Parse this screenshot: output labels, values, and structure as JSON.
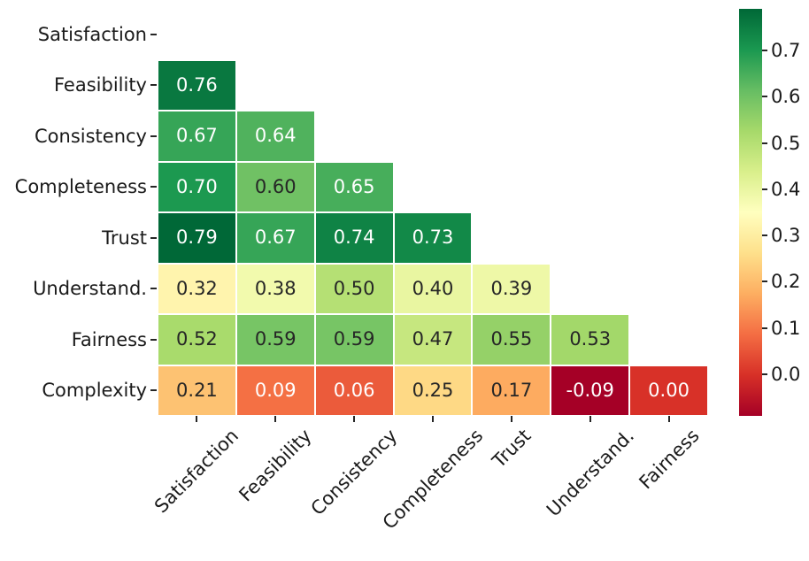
{
  "figure": {
    "background": "#ffffff",
    "text_color": "#1a1a1a"
  },
  "chart_data": {
    "type": "heatmap",
    "subtype": "correlation-matrix-lower-triangle",
    "title": "",
    "rows": [
      "Satisfaction",
      "Feasibility",
      "Consistency",
      "Completeness",
      "Trust",
      "Understand.",
      "Fairness",
      "Complexity"
    ],
    "cols": [
      "Satisfaction",
      "Feasibility",
      "Consistency",
      "Completeness",
      "Trust",
      "Understand.",
      "Fairness"
    ],
    "matrix": [
      [
        null,
        null,
        null,
        null,
        null,
        null,
        null
      ],
      [
        0.76,
        null,
        null,
        null,
        null,
        null,
        null
      ],
      [
        0.67,
        0.64,
        null,
        null,
        null,
        null,
        null
      ],
      [
        0.7,
        0.6,
        0.65,
        null,
        null,
        null,
        null
      ],
      [
        0.79,
        0.67,
        0.74,
        0.73,
        null,
        null,
        null
      ],
      [
        0.32,
        0.38,
        0.5,
        0.4,
        0.39,
        null,
        null
      ],
      [
        0.52,
        0.59,
        0.59,
        0.47,
        0.55,
        0.53,
        null
      ],
      [
        0.21,
        0.09,
        0.06,
        0.25,
        0.17,
        -0.09,
        0.0
      ]
    ],
    "mask": "upper-triangle-including-diagonal",
    "value_decimals": 2,
    "vmin": -0.09,
    "vmax": 0.79,
    "xlabel": "",
    "ylabel": "",
    "grid": false,
    "cell_gap_color": "#ffffff",
    "annotation_dark_text": "#262626",
    "annotation_light_text": "#ffffff",
    "colormap": {
      "name": "RdYlGn",
      "stops": [
        [
          0.0,
          "#a50026"
        ],
        [
          0.1,
          "#d73027"
        ],
        [
          0.2,
          "#f46d43"
        ],
        [
          0.3,
          "#fdae61"
        ],
        [
          0.4,
          "#fee08b"
        ],
        [
          0.5,
          "#ffffbf"
        ],
        [
          0.6,
          "#d9ef8b"
        ],
        [
          0.7,
          "#a6d96a"
        ],
        [
          0.8,
          "#66bd63"
        ],
        [
          0.9,
          "#1a9850"
        ],
        [
          1.0,
          "#006837"
        ]
      ]
    },
    "colorbar": {
      "position": "right",
      "ticks": [
        0.0,
        0.1,
        0.2,
        0.3,
        0.4,
        0.5,
        0.6,
        0.7
      ]
    }
  }
}
